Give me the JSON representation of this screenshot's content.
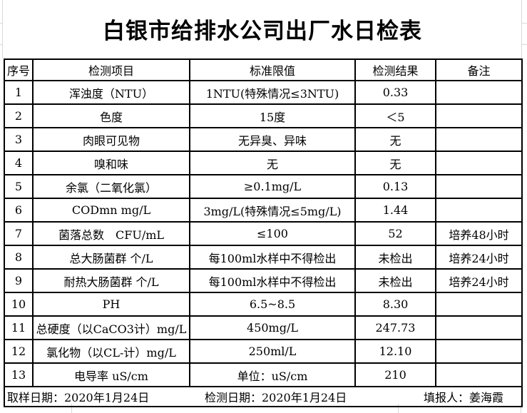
{
  "title": "白银市给排水公司出厂水日检表",
  "table": {
    "headers": [
      "序号",
      "检测项目",
      "标准限值",
      "检测结果",
      "备注"
    ],
    "rows": [
      {
        "no": "1",
        "item": "浑浊度（NTU）",
        "limit": "1NTU(特殊情况≤3NTU)",
        "result": "0.33",
        "note": ""
      },
      {
        "no": "2",
        "item": "色度",
        "limit": "15度",
        "result": "＜5",
        "note": ""
      },
      {
        "no": "3",
        "item": "肉眼可见物",
        "limit": "无异臭、异味",
        "result": "无",
        "note": ""
      },
      {
        "no": "4",
        "item": "嗅和味",
        "limit": "无",
        "result": "无",
        "note": ""
      },
      {
        "no": "5",
        "item": "余氯（二氧化氯）",
        "limit": "≥0.1mg/L",
        "result": "0.13",
        "note": ""
      },
      {
        "no": "6",
        "item": "CODmn mg/L",
        "limit": "3mg/L(特殊情况≤5mg/L)",
        "result": "1.44",
        "note": ""
      },
      {
        "no": "7",
        "item": "菌落总数　CFU/mL",
        "limit": "≤100",
        "result": "52",
        "note": "培养48小时"
      },
      {
        "no": "8",
        "item": "总大肠菌群 个/L",
        "limit": "每100ml水样中不得检出",
        "result": "未检出",
        "note": "培养24小时"
      },
      {
        "no": "9",
        "item": "耐热大肠菌群 个/L",
        "limit": "每100ml水样中不得检出",
        "result": "未检出",
        "note": "培养24小时"
      },
      {
        "no": "10",
        "item": "PH",
        "limit": "6.5~8.5",
        "result": "8.30",
        "note": ""
      },
      {
        "no": "11",
        "item": "总硬度（以CaCO3计）mg/L",
        "limit": "450mg/L",
        "result": "247.73",
        "note": ""
      },
      {
        "no": "12",
        "item": "氯化物（以CL-计）mg/L",
        "limit": "250ml/L",
        "result": "12.10",
        "note": ""
      },
      {
        "no": "13",
        "item": "电导率 uS/cm",
        "limit": "单位：uS/cm",
        "result": "210",
        "note": ""
      }
    ]
  },
  "footer": {
    "sampling_date": "取样日期：2020年1月24日",
    "test_date": "检测日期：2020年1月24日",
    "reporter": "填报人：姜海霞"
  }
}
